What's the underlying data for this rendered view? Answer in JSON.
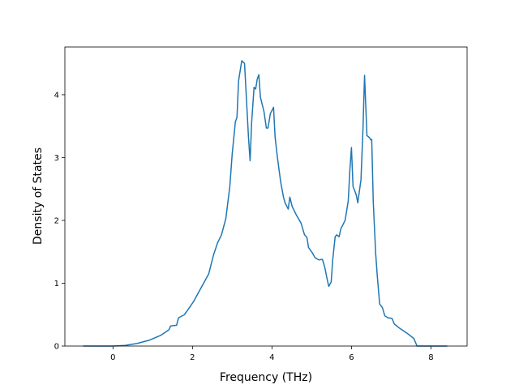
{
  "chart_data": {
    "type": "line",
    "xlabel": "Frequency (THz)",
    "ylabel": "Density of States",
    "x": [
      -0.75,
      0,
      0.3,
      0.6,
      0.9,
      1.2,
      1.41,
      1.45,
      1.6,
      1.65,
      1.8,
      2.02,
      2.22,
      2.41,
      2.53,
      2.63,
      2.73,
      2.84,
      2.94,
      3.0,
      3.08,
      3.12,
      3.16,
      3.24,
      3.31,
      3.35,
      3.41,
      3.45,
      3.49,
      3.55,
      3.59,
      3.63,
      3.67,
      3.71,
      3.8,
      3.86,
      3.9,
      3.96,
      4.04,
      4.08,
      4.14,
      4.22,
      4.29,
      4.33,
      4.41,
      4.45,
      4.51,
      4.61,
      4.73,
      4.82,
      4.88,
      4.92,
      5.02,
      5.08,
      5.18,
      5.27,
      5.33,
      5.39,
      5.43,
      5.49,
      5.53,
      5.59,
      5.63,
      5.69,
      5.73,
      5.84,
      5.92,
      5.96,
      6.0,
      6.04,
      6.12,
      6.16,
      6.24,
      6.29,
      6.33,
      6.39,
      6.45,
      6.49,
      6.51,
      6.55,
      6.61,
      6.65,
      6.71,
      6.78,
      6.84,
      6.92,
      7.02,
      7.08,
      7.22,
      7.43,
      7.57,
      7.65,
      8.41
    ],
    "series": [
      {
        "name": "DOS",
        "color": "#1f77b4",
        "values": [
          0,
          0,
          0.01,
          0.04,
          0.09,
          0.17,
          0.26,
          0.32,
          0.33,
          0.45,
          0.5,
          0.7,
          0.93,
          1.15,
          1.45,
          1.64,
          1.77,
          2.03,
          2.54,
          3.06,
          3.57,
          3.64,
          4.22,
          4.54,
          4.5,
          4.03,
          3.32,
          2.95,
          3.57,
          4.12,
          4.09,
          4.25,
          4.32,
          3.96,
          3.73,
          3.47,
          3.47,
          3.7,
          3.8,
          3.32,
          2.99,
          2.61,
          2.37,
          2.28,
          2.18,
          2.37,
          2.22,
          2.09,
          1.96,
          1.77,
          1.73,
          1.57,
          1.48,
          1.41,
          1.37,
          1.38,
          1.25,
          1.06,
          0.95,
          1.02,
          1.38,
          1.74,
          1.77,
          1.74,
          1.86,
          2.0,
          2.31,
          2.8,
          3.16,
          2.54,
          2.41,
          2.28,
          2.65,
          3.45,
          4.31,
          3.35,
          3.32,
          3.28,
          3.29,
          2.28,
          1.47,
          1.12,
          0.67,
          0.61,
          0.48,
          0.45,
          0.44,
          0.35,
          0.28,
          0.19,
          0.12,
          0,
          0
        ]
      }
    ],
    "xlim": [
      -1.21,
      8.91
    ],
    "ylim": [
      0,
      4.76
    ],
    "xticks": [
      0,
      2,
      4,
      6,
      8
    ],
    "yticks": [
      0,
      1,
      2,
      3,
      4
    ]
  }
}
